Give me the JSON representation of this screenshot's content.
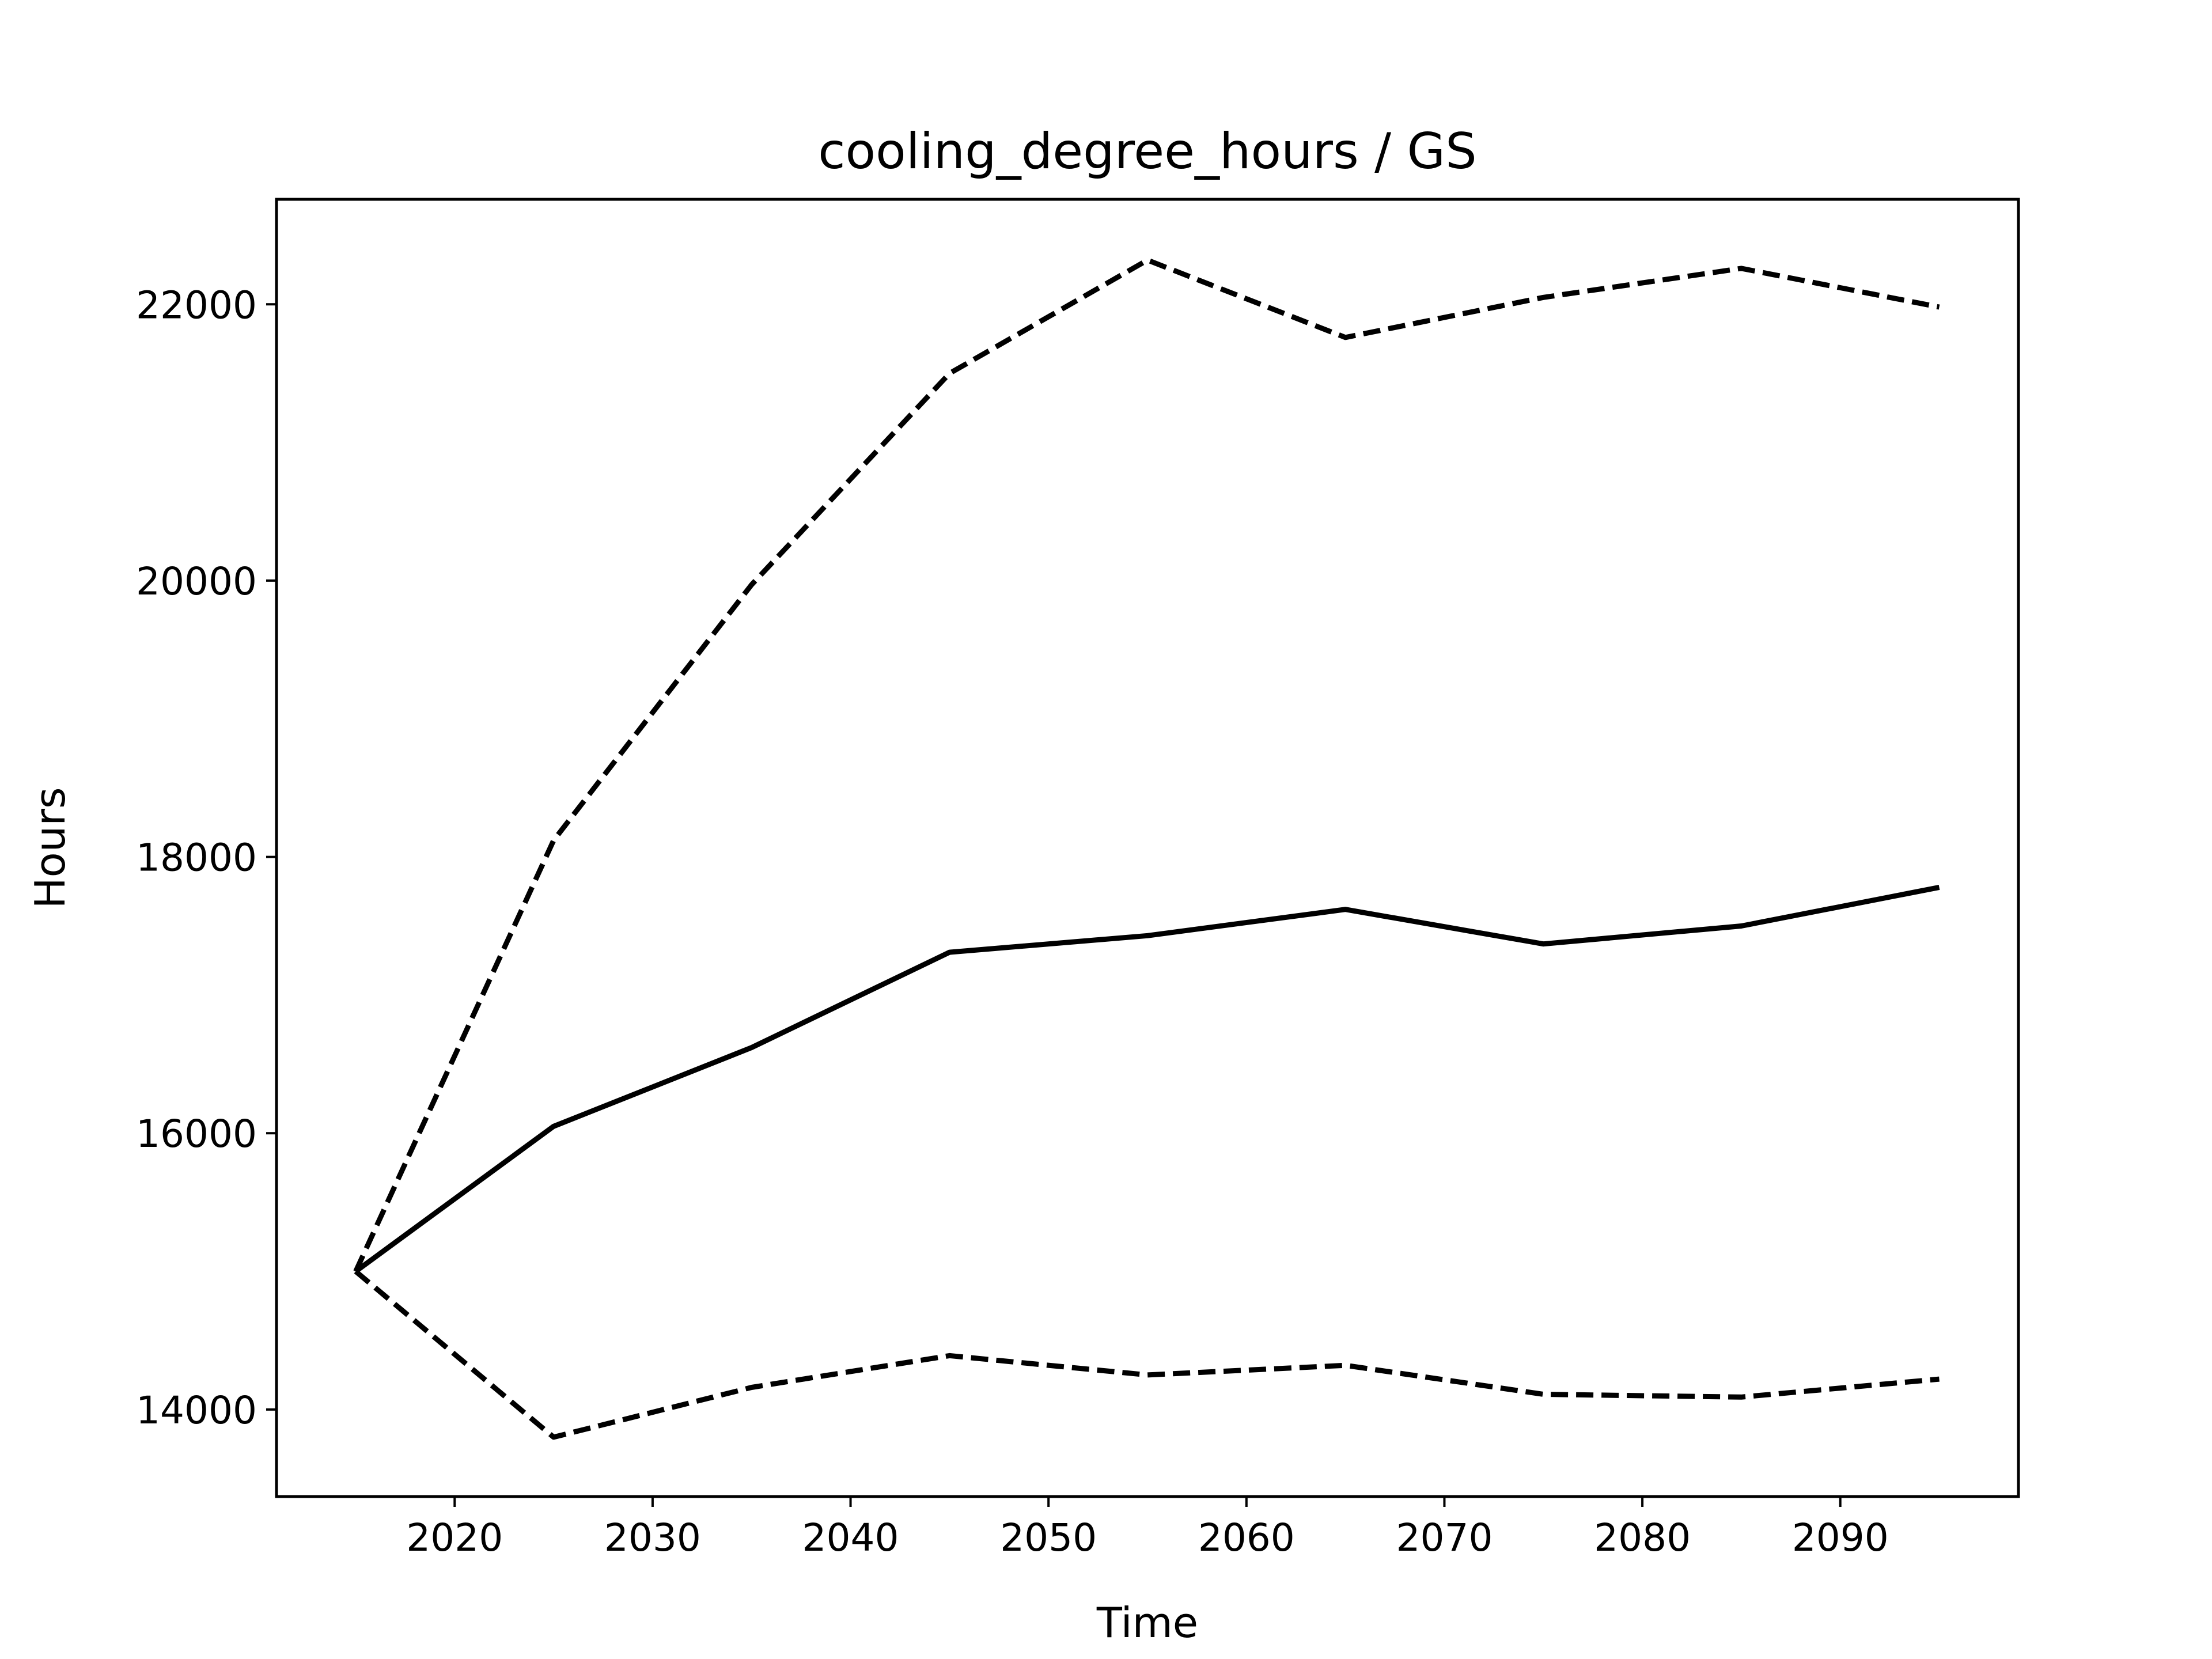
{
  "chart_data": {
    "type": "line",
    "title": "cooling_degree_hours / GS",
    "xlabel": "Time",
    "ylabel": "Hours",
    "x": [
      2015,
      2025,
      2035,
      2045,
      2055,
      2065,
      2075,
      2085,
      2095
    ],
    "xlim": [
      2011,
      2099
    ],
    "ylim": [
      13370,
      22760
    ],
    "xticks": [
      2020,
      2030,
      2040,
      2050,
      2060,
      2070,
      2080,
      2090
    ],
    "yticks": [
      14000,
      16000,
      18000,
      20000,
      22000
    ],
    "grid": false,
    "series": [
      {
        "style": "solid",
        "color": "#000000",
        "values": [
          15000,
          16050,
          16620,
          17310,
          17430,
          17620,
          17370,
          17500,
          17780
        ]
      },
      {
        "style": "dashed",
        "color": "#000000",
        "values": [
          15000,
          18120,
          19970,
          21500,
          22320,
          21760,
          22050,
          22260,
          21980
        ]
      },
      {
        "style": "dashed",
        "color": "#000000",
        "values": [
          15000,
          13800,
          14160,
          14390,
          14250,
          14320,
          14110,
          14090,
          14220
        ]
      }
    ]
  }
}
